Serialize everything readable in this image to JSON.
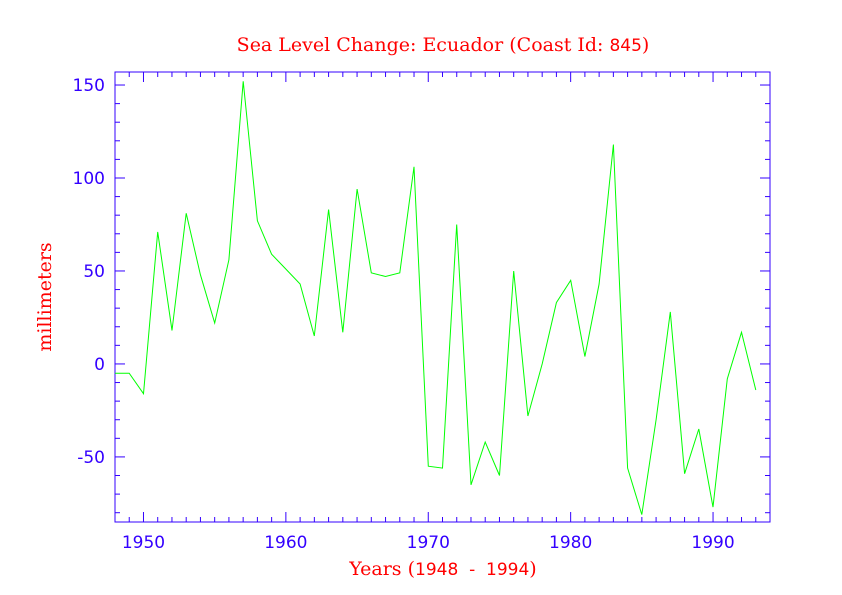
{
  "chart_data": {
    "type": "line",
    "title_text": "Sea Level Change: Ecuador (Coast Id:",
    "title_id": "845",
    "title_close": ")",
    "xlabel_text": "Years (",
    "xlabel_range": "1948  -  1994",
    "xlabel_close": ")",
    "ylabel": "millimeters",
    "xlim": [
      1948,
      1994
    ],
    "ylim": [
      -85,
      157
    ],
    "xticks": [
      1950,
      1960,
      1970,
      1980,
      1990
    ],
    "yticks": [
      150,
      100,
      50,
      0,
      -50
    ],
    "x_minor_step": 1,
    "y_minor_step": 10,
    "grid": false,
    "colors": {
      "axis": "#3300ff",
      "series": "#00ff00",
      "labels": "#ff0000"
    },
    "series": [
      {
        "x": [
          1948,
          1949,
          1950,
          1951,
          1952,
          1953,
          1954,
          1955,
          1956,
          1957,
          1958,
          1959,
          1960,
          1961,
          1962,
          1963,
          1964,
          1965,
          1966,
          1967,
          1968,
          1969,
          1970,
          1971,
          1972,
          1973,
          1974,
          1975,
          1976,
          1977,
          1978,
          1979,
          1980,
          1981,
          1982,
          1983,
          1984,
          1985,
          1986,
          1987,
          1988,
          1989,
          1990,
          1991,
          1992,
          1993
        ],
        "values": [
          -5,
          -5,
          -16,
          71,
          18,
          81,
          48,
          22,
          56,
          152,
          77,
          59,
          51,
          43,
          15,
          83,
          17,
          94,
          49,
          47,
          49,
          106,
          -55,
          -56,
          75,
          -65,
          -42,
          -60,
          50,
          -28,
          0,
          33,
          45,
          4,
          43,
          118,
          -56,
          -81,
          -30,
          28,
          -59,
          -35,
          -77,
          -8,
          17,
          -14
        ]
      }
    ]
  }
}
